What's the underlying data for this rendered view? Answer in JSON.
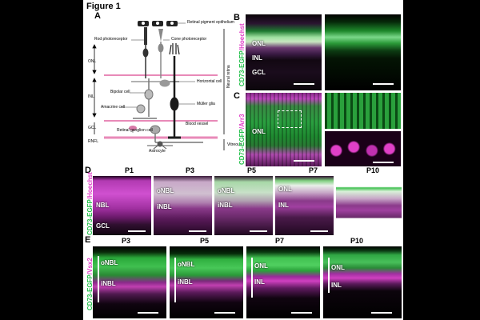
{
  "figure_title": "Figure 1",
  "panel_letters": {
    "A": "A",
    "B": "B",
    "C": "C",
    "D": "D",
    "E": "E"
  },
  "diagram": {
    "rpe_label": "Retinal pigment epithelium",
    "rod_label": "Rod photoreceptor",
    "cone_label": "Cone photoreceptor",
    "horizontal_label": "Horizontal cell",
    "bipolar_label": "Bipolar cell",
    "amacrine_label": "Amacrine cell",
    "muller_label": "Müller glia",
    "ganglion_label": "Retinal ganglion cell",
    "vessel_label": "Blood vessel",
    "astrocyte_label": "Astrocyte",
    "neural_retina_label": "Neural retina",
    "vitreous_label": "Vitreous",
    "layers": [
      "ONL",
      "INL",
      "GCL",
      "RNFL"
    ]
  },
  "panel_b": {
    "stain_green": "CD73-EGFP",
    "stain_sep": "/",
    "stain_magenta": "Hoechst",
    "labels": [
      "ONL",
      "INL",
      "GCL"
    ]
  },
  "panel_c": {
    "stain_green": "CD73-EGFP",
    "stain_sep": "/",
    "stain_magenta": "Arr3",
    "labels": [
      "ONL"
    ]
  },
  "panel_d": {
    "stain_green": "CD73-EGFP",
    "stain_sep": "/",
    "stain_magenta": "Hoechst",
    "timepoints": [
      "P1",
      "P3",
      "P5",
      "P7",
      "P10"
    ],
    "p1_labels": [
      "NBL",
      "GCL"
    ],
    "p3_labels": [
      "oNBL",
      "iNBL"
    ],
    "p5_labels": [
      "oNBL",
      "iNBL"
    ],
    "p7_labels": [
      "ONL",
      "INL"
    ]
  },
  "panel_e": {
    "stain_green": "CD73-EGFP",
    "stain_sep": "/",
    "stain_magenta": "Vsx2",
    "timepoints": [
      "P3",
      "P5",
      "P7",
      "P10"
    ],
    "p3_labels": [
      "oNBL",
      "iNBL"
    ],
    "p5_labels": [
      "oNBL",
      "iNBL"
    ],
    "p7_labels": [
      "ONL",
      "INL"
    ],
    "p10_labels": [
      "ONL",
      "INL"
    ]
  },
  "colors": {
    "green": "#22c04a",
    "magenta": "#e040c8",
    "pink_line": "#e88ab8"
  }
}
